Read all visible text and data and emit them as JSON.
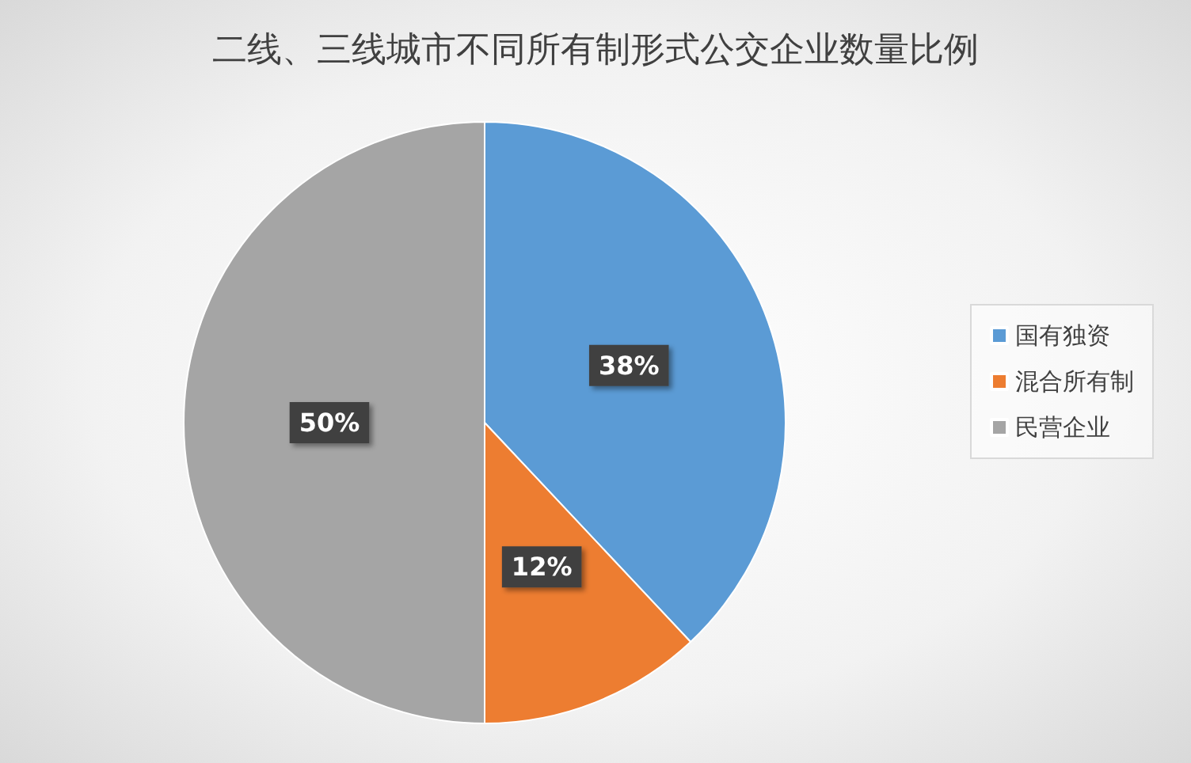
{
  "chart_data": {
    "type": "pie",
    "title": "二线、三线城市不同所有制形式公交企业数量比例",
    "categories": [
      "国有独资",
      "混合所有制",
      "民营企业"
    ],
    "values": [
      38,
      12,
      50
    ],
    "colors": [
      "#5b9bd5",
      "#ed7d31",
      "#a5a5a5"
    ],
    "value_labels": [
      "38%",
      "12%",
      "50%"
    ],
    "legend": "right"
  }
}
